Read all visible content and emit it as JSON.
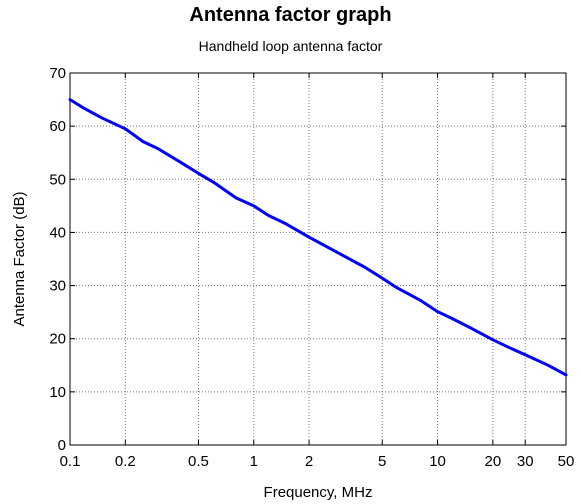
{
  "chart_data": {
    "type": "line",
    "title": "Antenna factor graph",
    "subtitle": "Handheld loop antenna factor",
    "xlabel": "Frequency, MHz",
    "ylabel": "Antenna Factor (dB)",
    "xscale": "log",
    "xlim": [
      0.1,
      50
    ],
    "ylim": [
      0,
      70
    ],
    "xticks": [
      0.1,
      0.2,
      0.5,
      1,
      2,
      5,
      10,
      20,
      30,
      50
    ],
    "xtick_labels": [
      "0.1",
      "0.2",
      "0.5",
      "1",
      "2",
      "5",
      "10",
      "20",
      "30",
      "50"
    ],
    "yticks": [
      0,
      10,
      20,
      30,
      40,
      50,
      60,
      70
    ],
    "ytick_labels": [
      "0",
      "10",
      "20",
      "30",
      "40",
      "50",
      "60",
      "70"
    ],
    "grid": true,
    "line_color": "#0000ff",
    "series": [
      {
        "x": [
          0.1,
          0.12,
          0.15,
          0.2,
          0.25,
          0.3,
          0.4,
          0.5,
          0.6,
          0.8,
          1,
          1.2,
          1.5,
          2,
          2.5,
          3,
          4,
          5,
          6,
          8,
          10,
          12,
          15,
          20,
          25,
          30,
          40,
          50
        ],
        "y": [
          65,
          63.3,
          61.5,
          59.5,
          57.1,
          55.8,
          53.2,
          51.1,
          49.5,
          46.5,
          45.0,
          43.2,
          41.6,
          39.1,
          37.3,
          35.8,
          33.5,
          31.4,
          29.6,
          27.3,
          25.1,
          23.8,
          22.1,
          19.8,
          18.2,
          17.0,
          15.0,
          13.2
        ]
      }
    ]
  }
}
